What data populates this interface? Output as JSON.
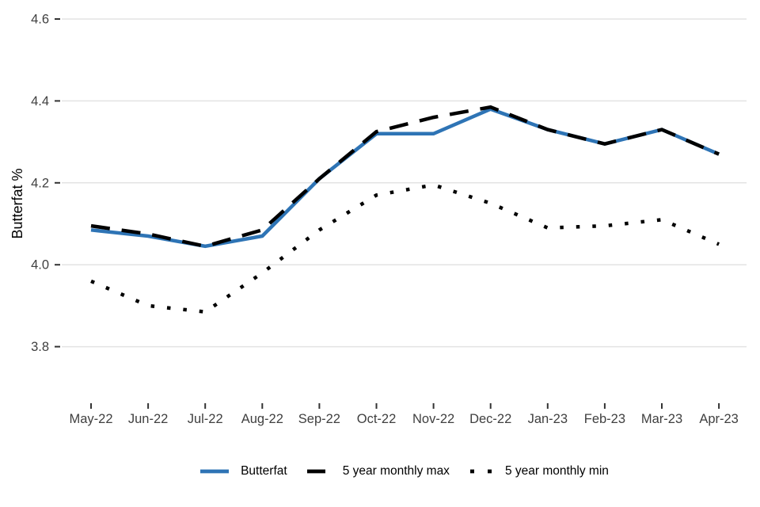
{
  "chart_data": {
    "type": "line",
    "title": "",
    "xlabel": "",
    "ylabel": "Butterfat %",
    "categories": [
      "May-22",
      "Jun-22",
      "Jul-22",
      "Aug-22",
      "Sep-22",
      "Oct-22",
      "Nov-22",
      "Dec-22",
      "Jan-23",
      "Feb-23",
      "Mar-23",
      "Apr-23"
    ],
    "y_ticks": [
      4.6,
      4.4,
      4.2,
      4.0,
      3.8
    ],
    "y_tick_labels": [
      "4.6",
      "4.4",
      "4.2",
      "4.0",
      "3.8"
    ],
    "ylim": [
      3.67,
      4.63
    ],
    "grid": "horizontal-major-only",
    "legend_position": "bottom-center",
    "series": [
      {
        "name": "Butterfat",
        "style": "solid",
        "color": "#2E74B5",
        "values": [
          4.085,
          4.07,
          4.045,
          4.07,
          4.21,
          4.32,
          4.32,
          4.38,
          4.33,
          4.295,
          4.33,
          4.27
        ]
      },
      {
        "name": "5 year monthly max",
        "style": "dashed",
        "color": "#000000",
        "values": [
          4.095,
          4.075,
          4.045,
          4.085,
          4.21,
          4.325,
          4.36,
          4.385,
          4.33,
          4.295,
          4.33,
          4.27
        ]
      },
      {
        "name": "5 year monthly min",
        "style": "dotted",
        "color": "#000000",
        "values": [
          3.96,
          3.9,
          3.885,
          3.98,
          4.085,
          4.17,
          4.195,
          4.15,
          4.09,
          4.095,
          4.11,
          4.05
        ]
      }
    ]
  }
}
